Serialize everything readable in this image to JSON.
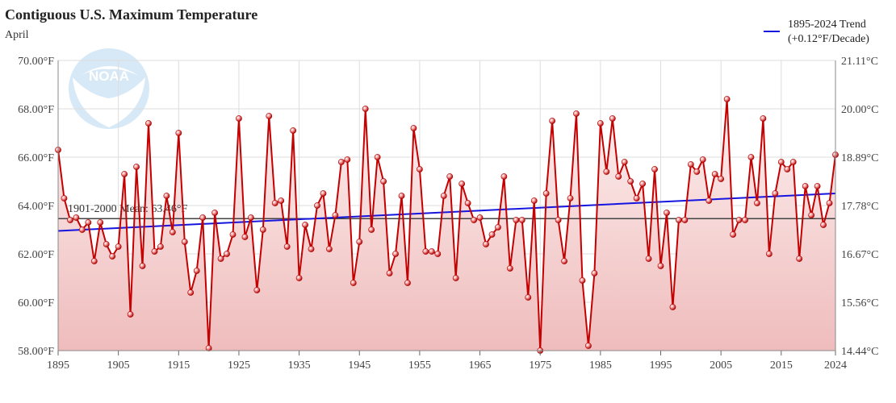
{
  "chart_data": {
    "type": "line",
    "title": "Contiguous U.S. Maximum Temperature",
    "subtitle": "April",
    "logo_text": "NOAA",
    "x_range": [
      1895,
      2024
    ],
    "x_ticks": [
      1895,
      1905,
      1915,
      1925,
      1935,
      1945,
      1955,
      1965,
      1975,
      1985,
      1995,
      2005,
      2015,
      2024
    ],
    "y_range_f": [
      58,
      70
    ],
    "y_ticks_left": [
      {
        "v": 58,
        "label": "58.00°F"
      },
      {
        "v": 60,
        "label": "60.00°F"
      },
      {
        "v": 62,
        "label": "62.00°F"
      },
      {
        "v": 64,
        "label": "64.00°F"
      },
      {
        "v": 66,
        "label": "66.00°F"
      },
      {
        "v": 68,
        "label": "68.00°F"
      },
      {
        "v": 70,
        "label": "70.00°F"
      }
    ],
    "y_ticks_right": [
      {
        "v": 58,
        "label": "14.44°C"
      },
      {
        "v": 60,
        "label": "15.56°C"
      },
      {
        "v": 62,
        "label": "16.67°C"
      },
      {
        "v": 64,
        "label": "17.78°C"
      },
      {
        "v": 66,
        "label": "18.89°C"
      },
      {
        "v": 68,
        "label": "20.00°C"
      },
      {
        "v": 70,
        "label": "21.11°C"
      }
    ],
    "grid": true,
    "legend": {
      "position": "top-right",
      "line1": "1895-2024 Trend",
      "line2": "(+0.12°F/Decade)",
      "color": "#1515e0"
    },
    "mean": {
      "value": 63.46,
      "label": "1901-2000 Mean: 63.46°F",
      "color": "#444444"
    },
    "trend": {
      "start": [
        1895,
        62.95
      ],
      "end": [
        2024,
        64.5
      ],
      "color": "#1515e0"
    },
    "series": [
      {
        "color": "#c40000",
        "fill_top": "#fbe4e4",
        "fill_bottom": "#efbcbc",
        "x_start": 1895,
        "values": [
          66.3,
          64.3,
          63.4,
          63.5,
          63.0,
          63.3,
          61.7,
          63.3,
          62.4,
          61.9,
          62.3,
          65.3,
          59.5,
          65.6,
          61.5,
          67.4,
          62.1,
          62.3,
          64.4,
          62.9,
          67.0,
          62.5,
          60.4,
          61.3,
          63.5,
          58.1,
          63.7,
          61.8,
          62.0,
          62.8,
          67.6,
          62.7,
          63.5,
          60.5,
          63.0,
          67.7,
          64.1,
          64.2,
          62.3,
          67.1,
          61.0,
          63.2,
          62.2,
          64.0,
          64.5,
          62.2,
          63.6,
          65.8,
          65.9,
          60.8,
          62.5,
          68.0,
          63.0,
          66.0,
          65.0,
          61.2,
          62.0,
          64.4,
          60.8,
          67.2,
          65.5,
          62.1,
          62.1,
          62.0,
          64.4,
          65.2,
          61.0,
          64.9,
          64.1,
          63.4,
          63.5,
          62.4,
          62.8,
          63.1,
          65.2,
          61.4,
          63.4,
          63.4,
          60.2,
          64.2,
          58.0,
          64.5,
          67.5,
          63.4,
          61.7,
          64.3,
          67.8,
          60.9,
          58.2,
          61.2,
          67.4,
          65.4,
          67.6,
          65.2,
          65.8,
          65.0,
          64.3,
          64.9,
          61.8,
          65.5,
          61.5,
          63.7,
          59.8,
          63.4,
          63.4,
          65.7,
          65.4,
          65.9,
          64.2,
          65.3,
          65.1,
          68.4,
          62.8,
          63.4,
          63.4,
          66.0,
          64.1,
          67.6,
          62.0,
          64.5,
          65.8,
          65.5,
          65.8,
          61.8,
          64.8,
          63.6,
          64.8,
          63.2,
          64.1,
          66.1
        ]
      }
    ]
  }
}
